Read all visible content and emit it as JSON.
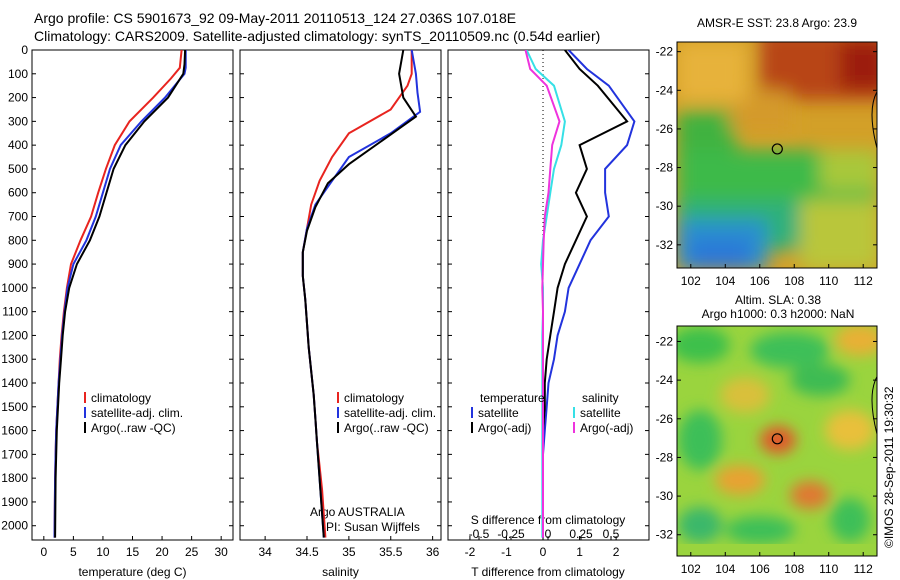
{
  "header": {
    "line1": "Argo profile: CS 5901673_92 09-May-2011 20110513_124 27.036S 107.018E",
    "line2": "Climatology: CARS2009. Satellite-adjusted climatology: synTS_20110509.nc (0.54d earlier)"
  },
  "depth_ticks": [
    "0",
    "100",
    "200",
    "300",
    "400",
    "500",
    "600",
    "700",
    "800",
    "900",
    "1000",
    "1100",
    "1200",
    "1300",
    "1400",
    "1500",
    "1600",
    "1700",
    "1800",
    "1900",
    "2000"
  ],
  "colors": {
    "climatology": "#e8241f",
    "satellite": "#2233dd",
    "argo": "#000000",
    "sal_satellite": "#36e0e6",
    "sal_argo": "#ee33dd"
  },
  "temperature_panel": {
    "xlabel": "temperature (deg C)",
    "xticks": [
      "0",
      "5",
      "10",
      "15",
      "20",
      "25",
      "30"
    ],
    "legend": [
      "climatology",
      "satellite-adj. clim.",
      "Argo(..raw -QC)"
    ]
  },
  "salinity_panel": {
    "xlabel": "salinity",
    "xticks": [
      "34",
      "34.5",
      "35",
      "35.5",
      "36"
    ],
    "legend": [
      "climatology",
      "satellite-adj. clim.",
      "Argo(..raw -QC)"
    ],
    "note1": "Argo AUSTRALIA",
    "note2": "PI: Susan Wijffels"
  },
  "difference_panel": {
    "top_label": "S difference from climatology",
    "s_ticks": [
      "-0.5",
      "-0.25",
      "0",
      "0.25",
      "0.5"
    ],
    "t_ticks": [
      "-2",
      "-1",
      "0",
      "1",
      "2"
    ],
    "xlabel": "T difference from climatology",
    "legend_temp_title": "temperature",
    "legend_sal_title": "salinity",
    "legend_temp": [
      "satellite",
      "Argo(-adj)"
    ],
    "legend_sal": [
      "satellite",
      "Argo(-adj)"
    ]
  },
  "sst_map": {
    "title": "AMSR-E SST: 23.8 Argo: 23.9",
    "yticks": [
      "-22",
      "-24",
      "-26",
      "-28",
      "-30",
      "-32"
    ],
    "xticks": [
      "102",
      "104",
      "106",
      "108",
      "110",
      "112"
    ]
  },
  "sla_map": {
    "title1": "Altim. SLA: 0.38",
    "title2": "Argo h1000: 0.3 h2000: NaN",
    "yticks": [
      "-22",
      "-24",
      "-26",
      "-28",
      "-30",
      "-32"
    ],
    "xticks": [
      "102",
      "104",
      "106",
      "108",
      "110",
      "112"
    ]
  },
  "credit": "©IMOS 28-Sep-2011 19:30:32",
  "chart_data": [
    {
      "type": "line",
      "xlabel": "temperature (deg C)",
      "ylabel": "",
      "xlim": [
        -2,
        32
      ],
      "ylim": [
        2060,
        0
      ],
      "series": [
        {
          "name": "climatology",
          "x": [
            23.3,
            23.0,
            21.5,
            18.5,
            14.5,
            12.0,
            10.5,
            9.2,
            8.0,
            6.2,
            4.6,
            3.9,
            3.4,
            3.0,
            2.7,
            2.5,
            2.3,
            2.1,
            2.0,
            1.9,
            1.8
          ],
          "y": [
            0,
            75,
            120,
            200,
            300,
            400,
            500,
            600,
            700,
            800,
            900,
            1000,
            1100,
            1200,
            1300,
            1400,
            1500,
            1600,
            1700,
            1800,
            2050
          ]
        },
        {
          "name": "satellite-adj. clim.",
          "x": [
            24.0,
            24.0,
            23.8,
            20.5,
            16.5,
            13.0,
            11.2,
            10.0,
            8.8,
            7.2,
            5.0,
            4.0,
            3.5,
            3.1,
            2.8,
            2.5,
            2.3,
            2.1,
            2.0,
            1.9,
            1.8
          ],
          "y": [
            0,
            75,
            100,
            200,
            300,
            400,
            500,
            600,
            700,
            800,
            900,
            1000,
            1100,
            1200,
            1300,
            1400,
            1500,
            1600,
            1700,
            1800,
            2050
          ]
        },
        {
          "name": "Argo(..raw -QC)",
          "x": [
            23.9,
            23.8,
            23.6,
            21.0,
            17.0,
            13.8,
            11.8,
            10.6,
            9.4,
            7.8,
            5.6,
            4.3,
            3.6,
            3.2,
            2.9,
            2.6,
            2.4,
            2.2,
            2.1,
            2.0,
            1.9
          ],
          "y": [
            0,
            60,
            100,
            200,
            300,
            400,
            500,
            600,
            700,
            800,
            900,
            1000,
            1100,
            1200,
            1300,
            1400,
            1500,
            1600,
            1700,
            1800,
            2050
          ]
        }
      ]
    },
    {
      "type": "line",
      "xlabel": "salinity",
      "ylabel": "",
      "xlim": [
        33.7,
        36.1
      ],
      "ylim": [
        2060,
        0
      ],
      "series": [
        {
          "name": "climatology",
          "x": [
            35.75,
            35.75,
            35.7,
            35.5,
            35.0,
            34.8,
            34.65,
            34.55,
            34.5,
            34.45,
            34.45,
            34.48,
            34.5,
            34.52,
            34.55,
            34.58,
            34.6,
            34.62,
            34.65,
            34.68,
            34.72
          ],
          "y": [
            0,
            100,
            150,
            250,
            350,
            450,
            550,
            650,
            750,
            850,
            950,
            1050,
            1150,
            1250,
            1350,
            1450,
            1550,
            1650,
            1750,
            1850,
            2050
          ]
        },
        {
          "name": "satellite-adj. clim.",
          "x": [
            35.75,
            35.8,
            35.82,
            35.85,
            35.5,
            35.0,
            34.8,
            34.6,
            34.5,
            34.45,
            34.45,
            34.48,
            34.5,
            34.52,
            34.55,
            34.58,
            34.6,
            34.62,
            34.64,
            34.66,
            34.7
          ],
          "y": [
            0,
            100,
            180,
            260,
            350,
            450,
            550,
            650,
            750,
            850,
            950,
            1050,
            1150,
            1250,
            1350,
            1450,
            1550,
            1650,
            1750,
            1850,
            2050
          ]
        },
        {
          "name": "Argo(..raw -QC)",
          "x": [
            35.65,
            35.6,
            35.65,
            35.8,
            35.4,
            35.0,
            34.75,
            34.6,
            34.5,
            34.45,
            34.45,
            34.48,
            34.5,
            34.52,
            34.55,
            34.58,
            34.6,
            34.62,
            34.64,
            34.66,
            34.7
          ],
          "y": [
            0,
            100,
            200,
            280,
            380,
            480,
            560,
            660,
            760,
            850,
            950,
            1050,
            1150,
            1250,
            1350,
            1450,
            1550,
            1650,
            1750,
            1850,
            2050
          ]
        }
      ]
    },
    {
      "type": "line",
      "xlabel": "T difference from climatology",
      "ylabel": "",
      "xlim": [
        -2.6,
        2.9
      ],
      "ylim": [
        2060,
        0
      ],
      "series": [
        {
          "name": "temperature satellite",
          "x": [
            0.7,
            1.2,
            1.8,
            2.5,
            2.3,
            1.7,
            1.7,
            1.8,
            1.3,
            1.0,
            0.7,
            0.6,
            0.4,
            0.3,
            0.15,
            0.1,
            0.05,
            0.0,
            0.0,
            0.0,
            0.0
          ],
          "y": [
            0,
            80,
            150,
            300,
            400,
            500,
            600,
            700,
            800,
            900,
            1000,
            1100,
            1200,
            1300,
            1400,
            1500,
            1600,
            1700,
            1800,
            1900,
            2050
          ]
        },
        {
          "name": "temperature Argo(-adj)",
          "x": [
            0.6,
            1.0,
            1.5,
            2.3,
            1.0,
            1.2,
            0.9,
            1.2,
            0.9,
            0.6,
            0.4,
            0.3,
            0.2,
            0.1,
            0.05,
            0.05,
            0.0,
            0.0,
            0.0,
            0.0,
            0.0
          ],
          "y": [
            0,
            80,
            150,
            300,
            400,
            500,
            600,
            700,
            800,
            900,
            1000,
            1100,
            1200,
            1300,
            1400,
            1500,
            1600,
            1700,
            1800,
            1900,
            2050
          ]
        },
        {
          "name": "salinity satellite",
          "x": [
            -0.45,
            -0.2,
            0.3,
            0.6,
            0.5,
            0.3,
            0.2,
            0.1,
            0.0,
            -0.05,
            0.0,
            0.0,
            -0.02,
            -0.02,
            -0.02,
            -0.02,
            -0.02,
            -0.02,
            -0.02,
            -0.02,
            -0.02
          ],
          "y": [
            0,
            80,
            150,
            300,
            400,
            500,
            600,
            700,
            800,
            900,
            1000,
            1100,
            1200,
            1300,
            1400,
            1500,
            1600,
            1700,
            1800,
            1900,
            2050
          ]
        },
        {
          "name": "salinity Argo(-adj)",
          "x": [
            -0.48,
            -0.35,
            0.1,
            0.45,
            0.25,
            0.2,
            0.15,
            0.05,
            0.02,
            0.0,
            -0.02,
            0.0,
            0.0,
            0.0,
            0.0,
            0.0,
            0.0,
            0.0,
            0.0,
            0.0,
            0.0
          ],
          "y": [
            0,
            80,
            150,
            300,
            400,
            500,
            600,
            700,
            800,
            900,
            1000,
            1100,
            1200,
            1300,
            1400,
            1500,
            1600,
            1700,
            1800,
            1900,
            2050
          ]
        }
      ]
    }
  ]
}
